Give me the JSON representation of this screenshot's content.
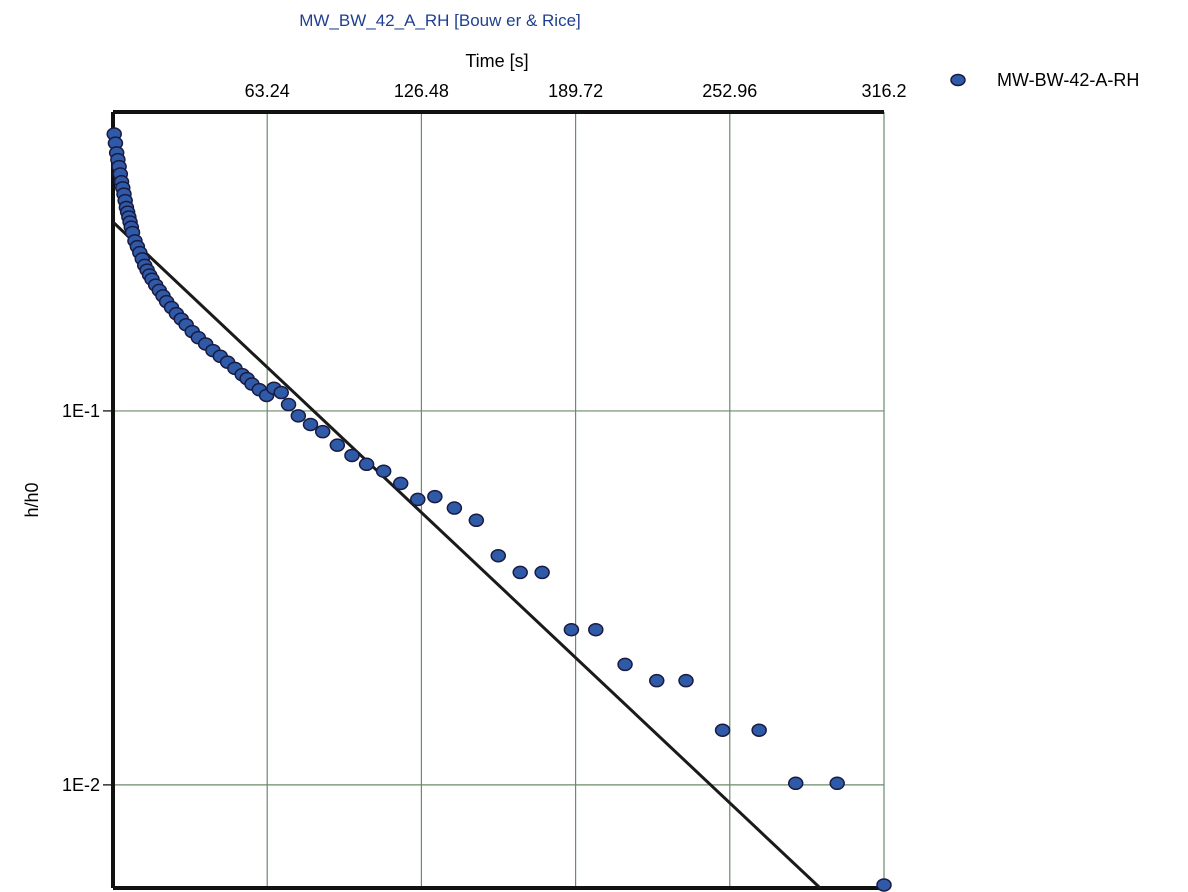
{
  "chart_data": {
    "type": "scatter",
    "title": "MW_BW_42_A_RH [Bouw er & Rice]",
    "xlabel": "Time [s]",
    "ylabel": "h/h0",
    "x_axis_position": "top",
    "xlim": [
      0,
      316.2
    ],
    "x_ticks": [
      "63.24",
      "126.48",
      "189.72",
      "252.96",
      "316.2"
    ],
    "y_scale": "log",
    "ylim": [
      0.0053,
      0.63
    ],
    "y_ticks": [
      {
        "value": 0.1,
        "label": "1E-1"
      },
      {
        "value": 0.01,
        "label": "1E-2"
      }
    ],
    "grid": true,
    "legend_position": "top-right",
    "colors": {
      "marker": "#2e5aa8",
      "marker_edge": "#1a1a40",
      "fit_line": "#1a1a1a",
      "title": "#1f3f8f"
    },
    "series": [
      {
        "name": "MW-BW-42-A-RH",
        "x": [
          0.5,
          1.0,
          1.5,
          2.0,
          2.5,
          3.0,
          3.5,
          4.0,
          4.5,
          5.0,
          5.5,
          6.0,
          6.5,
          7.0,
          7.5,
          8.0,
          9.0,
          10.0,
          11.0,
          12.0,
          13.0,
          14.0,
          15.0,
          16.0,
          17.5,
          19.0,
          20.5,
          22.0,
          24.0,
          26.0,
          28.0,
          30.0,
          32.5,
          35.0,
          38.0,
          41.0,
          44.0,
          47.0,
          50.0,
          53.0,
          55.0,
          57.0,
          60.0,
          63.0,
          66.0,
          69.0,
          72.0,
          76.0,
          81.0,
          86.0,
          92.0,
          98.0,
          104.0,
          111.0,
          118.0,
          125.0,
          132.0,
          140.0,
          149.0,
          158.0,
          167.0,
          176.0,
          188.0,
          198.0,
          210.0,
          223.0,
          235.0,
          250.0,
          265.0,
          280.0,
          297.0,
          316.2
        ],
        "y": [
          0.55,
          0.52,
          0.49,
          0.47,
          0.45,
          0.43,
          0.41,
          0.395,
          0.38,
          0.365,
          0.35,
          0.34,
          0.33,
          0.32,
          0.31,
          0.3,
          0.285,
          0.275,
          0.265,
          0.255,
          0.245,
          0.238,
          0.231,
          0.225,
          0.217,
          0.21,
          0.203,
          0.196,
          0.189,
          0.182,
          0.176,
          0.17,
          0.163,
          0.157,
          0.151,
          0.145,
          0.14,
          0.135,
          0.13,
          0.125,
          0.122,
          0.118,
          0.114,
          0.11,
          0.115,
          0.112,
          0.104,
          0.097,
          0.092,
          0.088,
          0.081,
          0.076,
          0.072,
          0.069,
          0.064,
          0.058,
          0.059,
          0.055,
          0.051,
          0.041,
          0.037,
          0.037,
          0.026,
          0.026,
          0.021,
          0.019,
          0.019,
          0.014,
          0.014,
          0.0101,
          0.0101,
          0.0054
        ]
      }
    ],
    "fit_line": {
      "x": [
        0,
        290
      ],
      "y": [
        0.32,
        0.0053
      ]
    }
  }
}
